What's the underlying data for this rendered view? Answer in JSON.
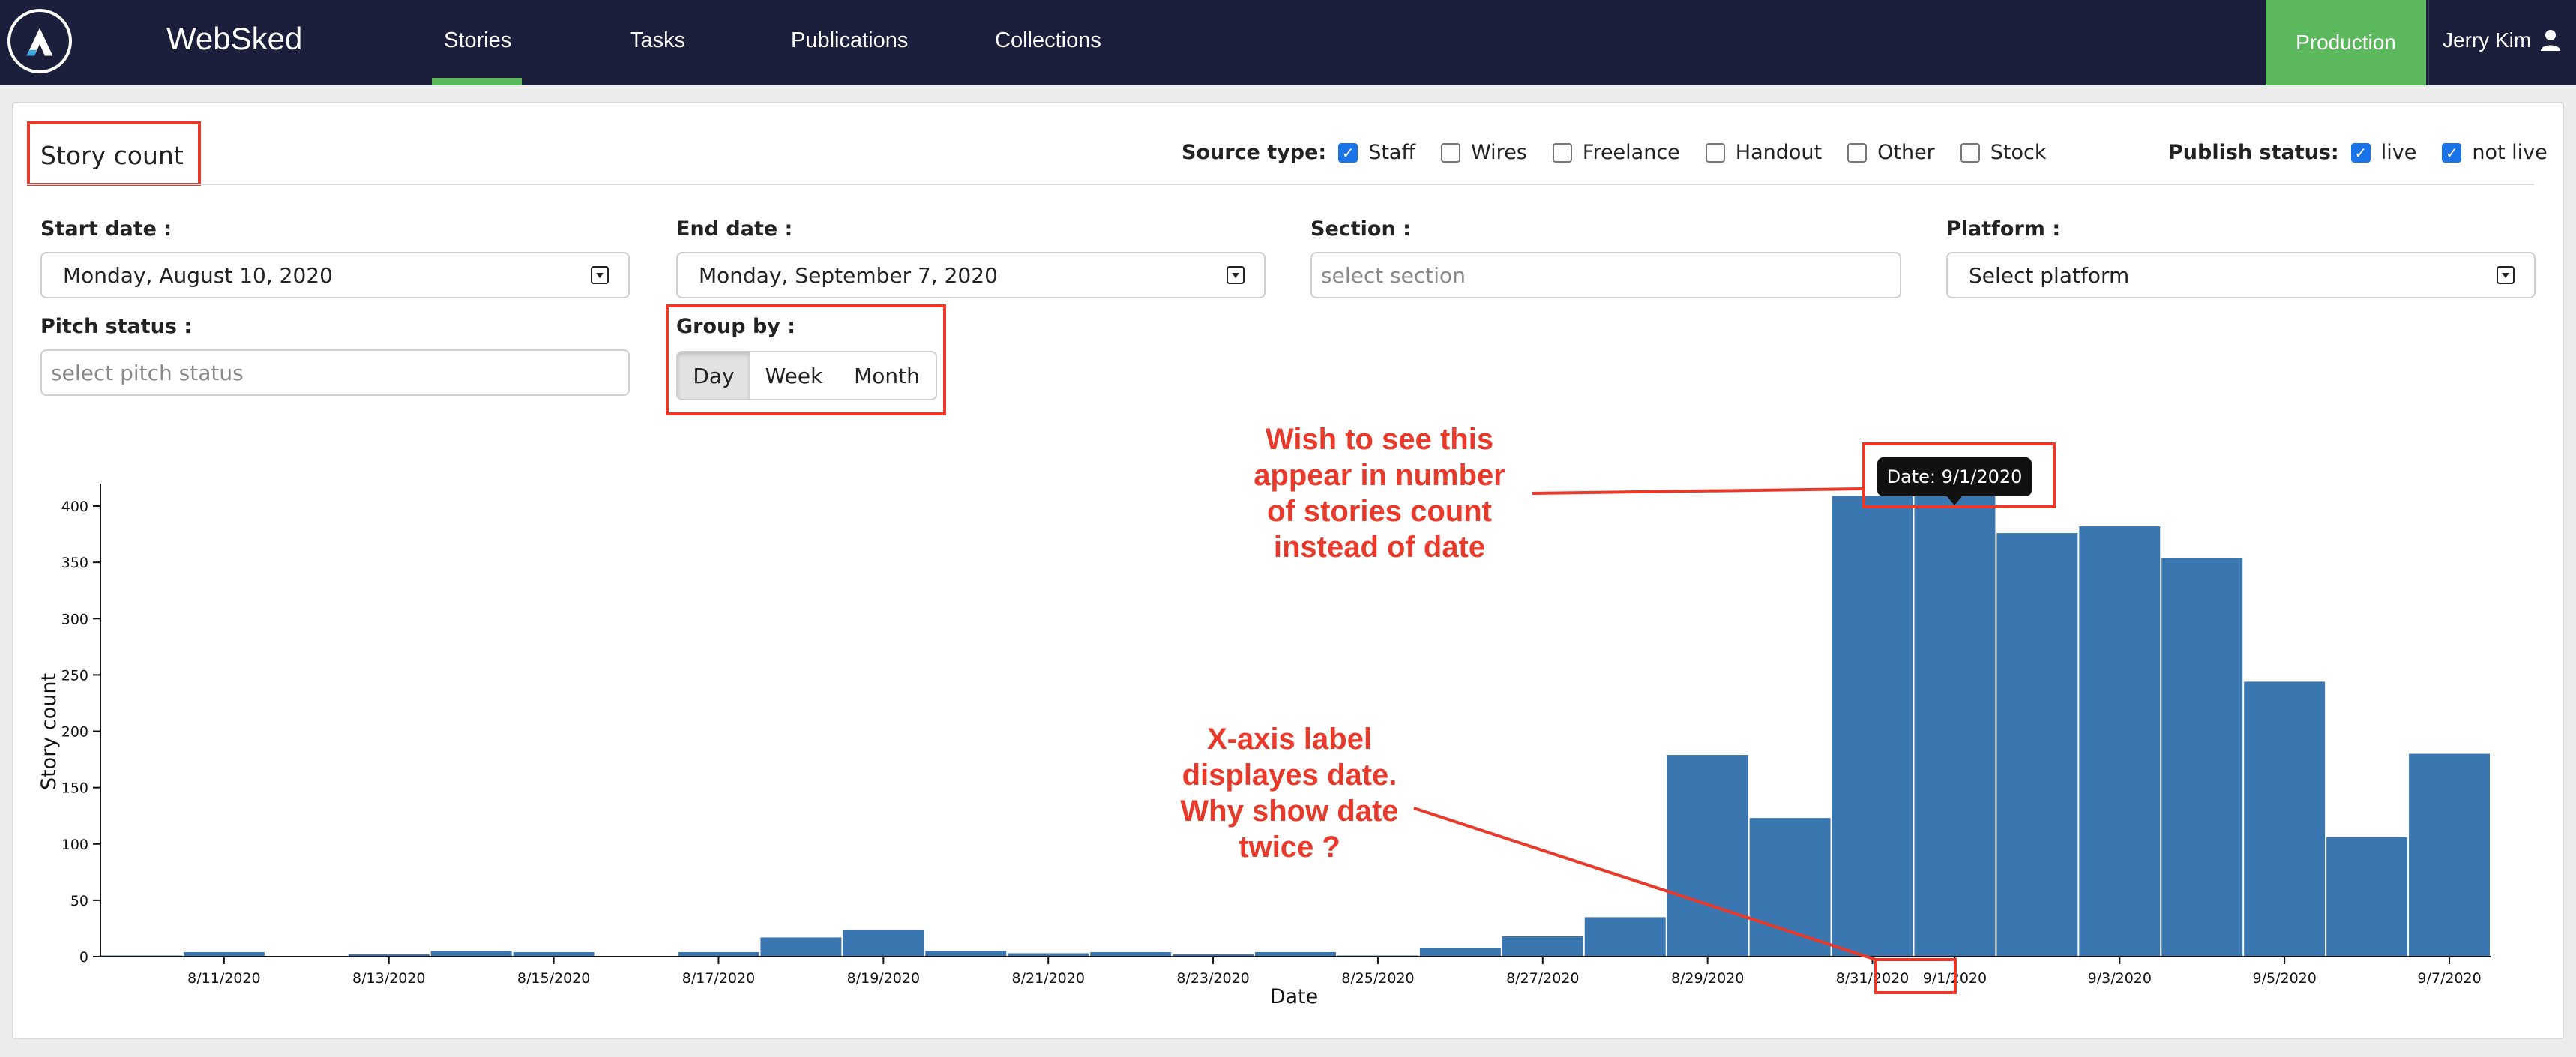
{
  "nav": {
    "app_name": "WebSked",
    "tabs": [
      {
        "label": "Stories",
        "active": true
      },
      {
        "label": "Tasks",
        "active": false
      },
      {
        "label": "Publications",
        "active": false
      },
      {
        "label": "Collections",
        "active": false
      }
    ],
    "env_button": "Production",
    "user_name": "Jerry Kim",
    "accent_color": "#5cb85c",
    "bg_color": "#1b1f3b"
  },
  "page": {
    "title": "Story count",
    "source_type": {
      "label": "Source type:",
      "options": [
        {
          "label": "Staff",
          "checked": true
        },
        {
          "label": "Wires",
          "checked": false
        },
        {
          "label": "Freelance",
          "checked": false
        },
        {
          "label": "Handout",
          "checked": false
        },
        {
          "label": "Other",
          "checked": false
        },
        {
          "label": "Stock",
          "checked": false
        }
      ]
    },
    "publish_status": {
      "label": "Publish status:",
      "options": [
        {
          "label": "live",
          "checked": true
        },
        {
          "label": "not live",
          "checked": true
        }
      ]
    },
    "filters": {
      "start_date": {
        "label": "Start date :",
        "value": "Monday, August 10, 2020"
      },
      "end_date": {
        "label": "End date :",
        "value": "Monday, September 7, 2020"
      },
      "section": {
        "label": "Section :",
        "placeholder": "select section"
      },
      "platform": {
        "label": "Platform :",
        "value": "Select platform"
      },
      "pitch_status": {
        "label": "Pitch status :",
        "placeholder": "select pitch status"
      },
      "group_by": {
        "label": "Group by :",
        "options": [
          "Day",
          "Week",
          "Month"
        ],
        "selected": "Day"
      }
    }
  },
  "annotations": {
    "tooltip": "Date: 9/1/2020",
    "note_top": [
      "Wish to see this",
      "appear in number",
      "of stories count",
      "instead of date"
    ],
    "note_bottom": [
      "X-axis label",
      "displayes date.",
      "Why show date",
      "twice ?"
    ],
    "color": "#e8392a"
  },
  "chart_data": {
    "type": "bar",
    "xlabel": "Date",
    "ylabel": "Story count",
    "ylim": [
      0,
      420
    ],
    "yticks": [
      0,
      50,
      100,
      150,
      200,
      250,
      300,
      350,
      400
    ],
    "bar_color": "#3a76b0",
    "categories": [
      "8/10/2020",
      "8/11/2020",
      "8/12/2020",
      "8/13/2020",
      "8/14/2020",
      "8/15/2020",
      "8/16/2020",
      "8/17/2020",
      "8/18/2020",
      "8/19/2020",
      "8/20/2020",
      "8/21/2020",
      "8/22/2020",
      "8/23/2020",
      "8/24/2020",
      "8/25/2020",
      "8/26/2020",
      "8/27/2020",
      "8/28/2020",
      "8/29/2020",
      "8/30/2020",
      "8/31/2020",
      "9/1/2020",
      "9/2/2020",
      "9/3/2020",
      "9/4/2020",
      "9/5/2020",
      "9/6/2020",
      "9/7/2020"
    ],
    "values": [
      1,
      4,
      0,
      2,
      5,
      4,
      0,
      4,
      17,
      24,
      5,
      3,
      4,
      2,
      4,
      1,
      8,
      18,
      35,
      179,
      123,
      409,
      411,
      376,
      382,
      354,
      244,
      106,
      180
    ],
    "tick_labels": [
      "8/11/2020",
      "8/13/2020",
      "8/15/2020",
      "8/17/2020",
      "8/19/2020",
      "8/21/2020",
      "8/23/2020",
      "8/25/2020",
      "8/27/2020",
      "8/29/2020",
      "8/31/2020",
      "9/1/2020",
      "9/3/2020",
      "9/5/2020",
      "9/7/2020"
    ]
  }
}
